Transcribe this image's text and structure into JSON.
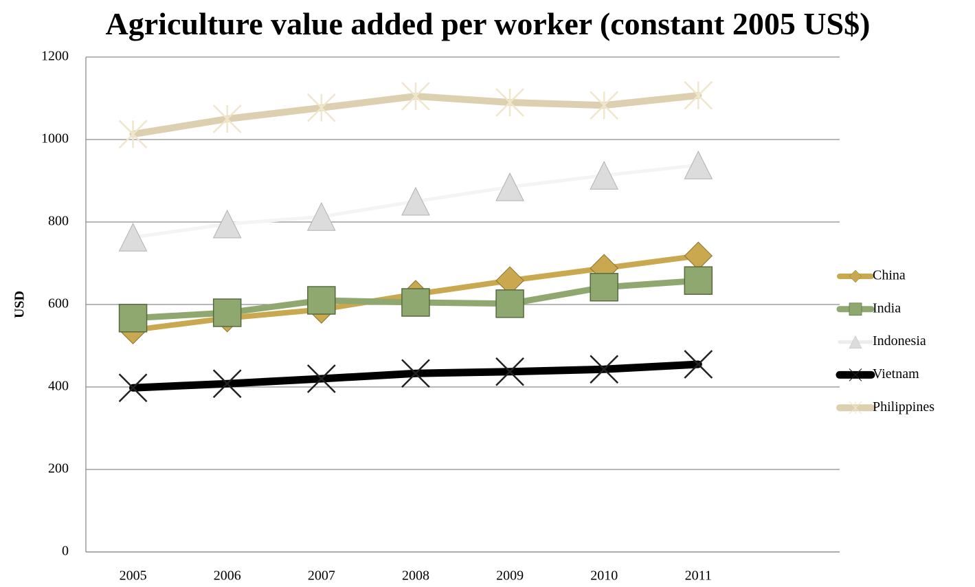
{
  "chart_data": {
    "type": "line",
    "title": "Agriculture value added per worker (constant 2005 US$)",
    "y_label": "USD",
    "categories": [
      "2005",
      "2006",
      "2007",
      "2008",
      "2009",
      "2010",
      "2011",
      null
    ],
    "series": [
      {
        "name": "China",
        "color": "#c9a84f",
        "marker": "diamond",
        "values": [
          538,
          567,
          588,
          625,
          658,
          688,
          718,
          null
        ]
      },
      {
        "name": "India",
        "color": "#8fa870",
        "marker": "square",
        "values": [
          567,
          580,
          610,
          605,
          602,
          642,
          658,
          null
        ]
      },
      {
        "name": "Indonesia",
        "color": "#f4f4f4",
        "marker": "triangle",
        "values": [
          763,
          795,
          813,
          850,
          885,
          913,
          938,
          null
        ]
      },
      {
        "name": "Vietnam",
        "color": "#000000",
        "marker": "x",
        "values": [
          398,
          408,
          420,
          433,
          437,
          443,
          455,
          null
        ]
      },
      {
        "name": "Philippines",
        "color": "#ddd0b0",
        "marker": "star",
        "values": [
          1013,
          1050,
          1077,
          1105,
          1090,
          1083,
          1107,
          null
        ]
      }
    ],
    "ylim": [
      0,
      1200
    ],
    "yticks": [
      0,
      200,
      400,
      600,
      800,
      1000,
      1200
    ],
    "grid": true,
    "legend": "right"
  }
}
